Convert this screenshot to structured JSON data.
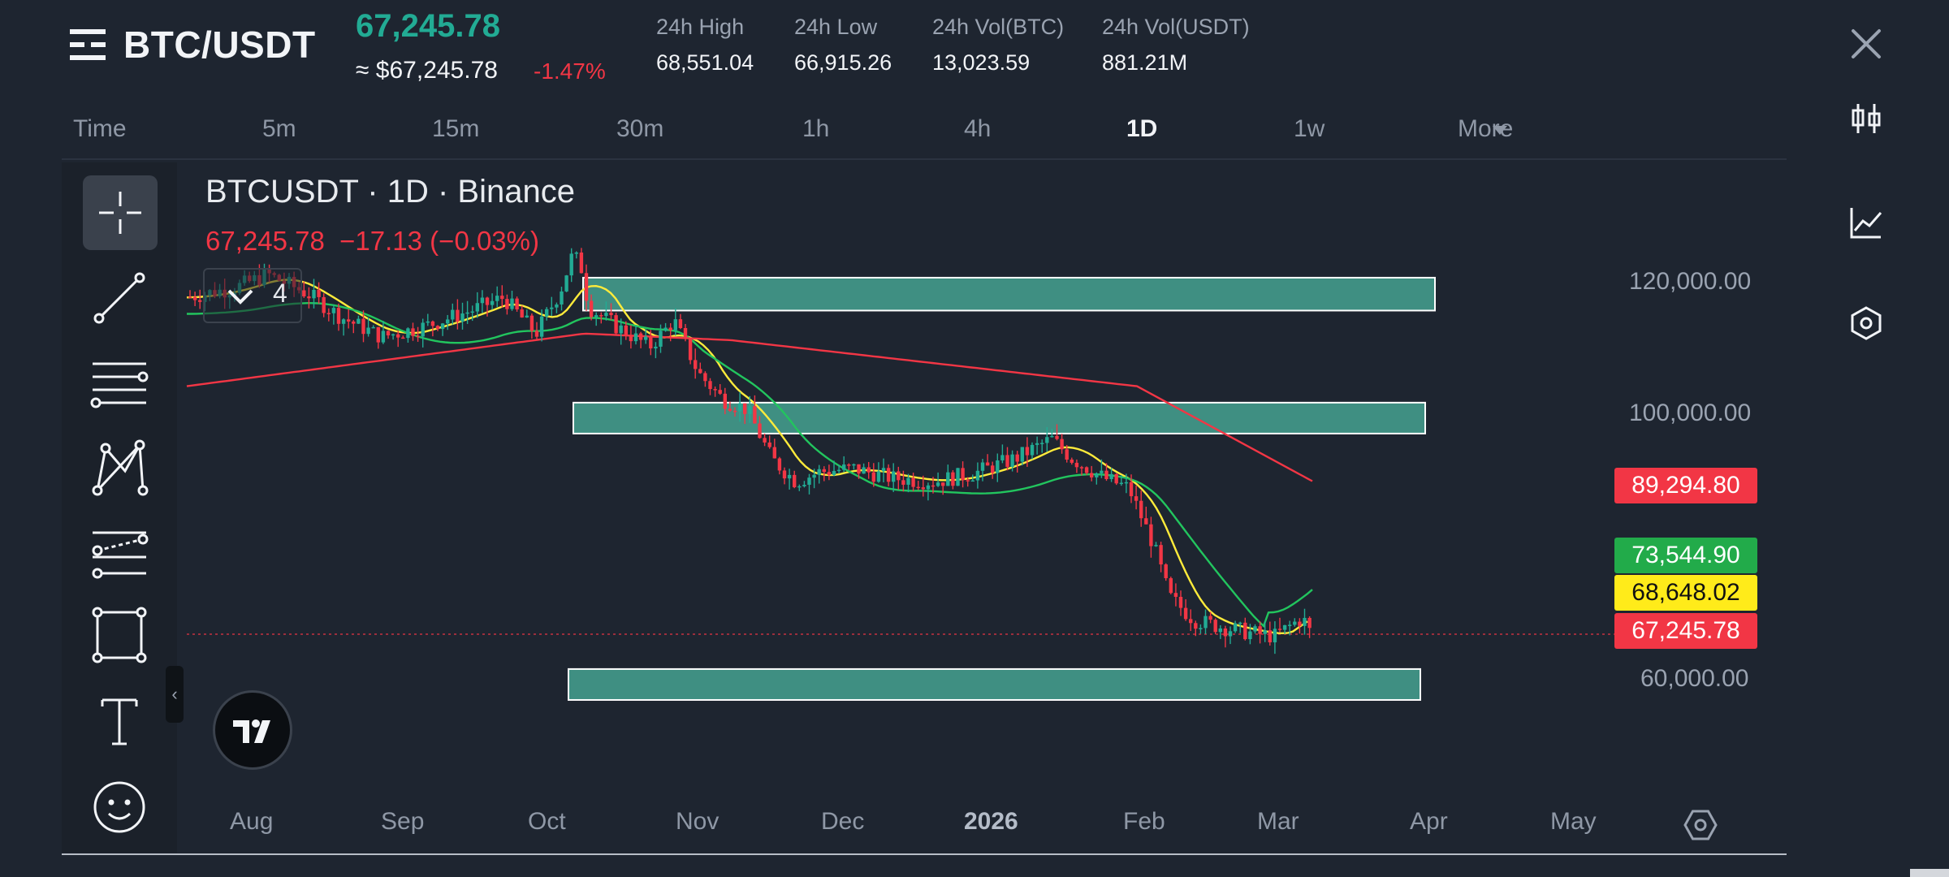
{
  "header": {
    "pair": "BTC/USDT",
    "last_price": "67,245.78",
    "fiat_price": "≈ $67,245.78",
    "change_pct": "-1.47%",
    "stats": [
      {
        "label": "24h High",
        "value": "68,551.04"
      },
      {
        "label": "24h Low",
        "value": "66,915.26"
      },
      {
        "label": "24h Vol(BTC)",
        "value": "13,023.59"
      },
      {
        "label": "24h Vol(USDT)",
        "value": "881.21M"
      }
    ]
  },
  "intervals": {
    "items": [
      "Time",
      "5m",
      "15m",
      "30m",
      "1h",
      "4h",
      "1D",
      "1w",
      "More"
    ],
    "active": "1D"
  },
  "right_rail": [
    "close-icon",
    "candlestick-icon",
    "indicator-chart-icon",
    "hexagon-settings-icon"
  ],
  "toolbar": [
    "crosshair-icon",
    "trend-line-icon",
    "fib-lines-icon",
    "pattern-icon",
    "projection-icon",
    "rectangle-icon",
    "text-icon",
    "emoji-icon"
  ],
  "chart": {
    "title": "BTCUSDT · 1D · Binance",
    "ohlc_price": "67,245.78",
    "ohlc_change": "−17.13 (−0.03%)",
    "indicator_count": "4",
    "price_labels": [
      "120,000.00",
      "100,000.00",
      "60,000.00"
    ],
    "price_tags": [
      {
        "value": "89,294.80",
        "bg": "#f23645",
        "fg": "#ffffff"
      },
      {
        "value": "73,544.90",
        "bg": "#22ab4a",
        "fg": "#ffffff"
      },
      {
        "value": "68,648.02",
        "bg": "#ffeb1a",
        "fg": "#111111"
      },
      {
        "value": "67,245.78",
        "bg": "#f23645",
        "fg": "#ffffff"
      }
    ],
    "time_labels": [
      "Aug",
      "Sep",
      "Oct",
      "Nov",
      "Dec",
      "2026",
      "Feb",
      "Mar",
      "Apr",
      "May"
    ]
  },
  "colors": {
    "background": "#1e2530",
    "up": "#22ab94",
    "down": "#f23645",
    "ma_yellow": "#ffeb3b",
    "ma_green": "#22c55e",
    "ma_red": "#f23645",
    "zone": "#3f8f82"
  },
  "chart_data": {
    "type": "candlestick",
    "price_axis_ticks": [
      120000,
      100000,
      60000
    ],
    "time_axis_ticks": [
      "Aug",
      "Sep",
      "Oct",
      "Nov",
      "Dec",
      "2026",
      "Feb",
      "Mar",
      "Apr",
      "May"
    ],
    "last_price": 67245.78,
    "zones": [
      {
        "low": 115500,
        "high": 120500
      },
      {
        "low": 96800,
        "high": 101500
      },
      {
        "low": 56300,
        "high": 61000
      }
    ],
    "moving_averages": [
      {
        "color": "#ffeb3b",
        "last": 68648.02
      },
      {
        "color": "#22c55e",
        "last": 73544.9
      },
      {
        "color": "#f23645",
        "last": 89294.8
      }
    ],
    "price_series": [
      [
        "Aug",
        117000
      ],
      [
        "Sep",
        111000
      ],
      [
        "Oct",
        120000
      ],
      [
        "Oct",
        124500
      ],
      [
        "Nov",
        107000
      ],
      [
        "Nov",
        100000
      ],
      [
        "Dec",
        88000
      ],
      [
        "Dec",
        90500
      ],
      [
        "2026",
        91000
      ],
      [
        "2026",
        96000
      ],
      [
        "Feb",
        70000
      ],
      [
        "Feb",
        67000
      ],
      [
        "Mar",
        69000
      ],
      [
        "Mar",
        67245.78
      ]
    ]
  }
}
